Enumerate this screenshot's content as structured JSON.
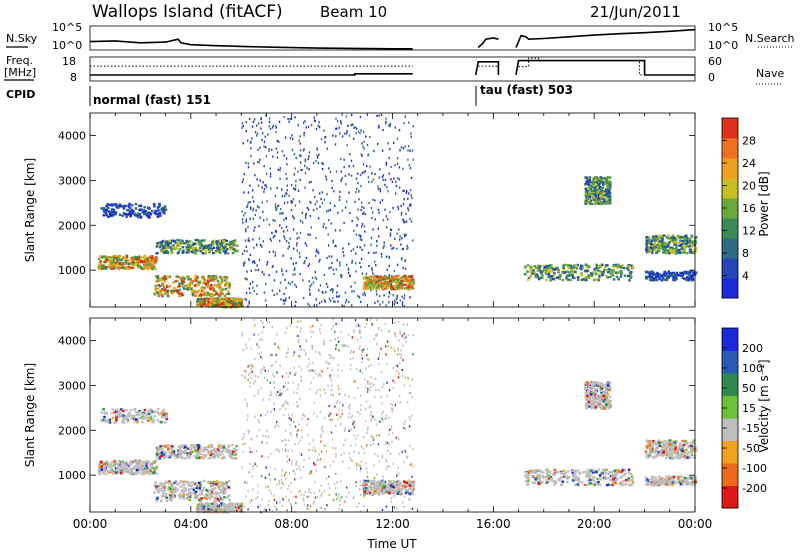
{
  "header": {
    "site": "Wallops Island (fitACF)",
    "beam": "Beam 10",
    "date": "21/Jun/2011"
  },
  "left_labels": {
    "nsky": "N.Sky",
    "freq": "Freq.",
    "freq_unit": "[MHz]",
    "cpid": "CPID"
  },
  "right_labels": {
    "nsearch": "N.Search",
    "nave": "Nave"
  },
  "cpid_labels": [
    "normal (fast) 151",
    "tau (fast) 503"
  ],
  "chart_data": [
    {
      "type": "line",
      "panel": "noise",
      "yticks_left": [
        "10^5",
        "10^0"
      ],
      "yticks_right": [
        "10^5",
        "10^0"
      ],
      "series": [
        {
          "name": "N.Sky",
          "segments": [
            {
              "x": [
                0,
                1,
                2,
                3,
                3.5,
                3.6,
                4,
                5,
                6,
                7,
                8,
                9,
                10,
                11,
                12,
                12.8
              ],
              "y": [
                0.35,
                0.38,
                0.3,
                0.33,
                0.45,
                0.3,
                0.22,
                0.18,
                0.15,
                0.12,
                0.1,
                0.08,
                0.07,
                0.06,
                0.05,
                0.05
              ]
            },
            {
              "x": [
                15.4,
                15.6,
                15.7,
                16.0,
                16.2
              ],
              "y": [
                0.1,
                0.3,
                0.45,
                0.5,
                0.45
              ]
            },
            {
              "x": [
                16.9,
                17.1,
                17.3,
                17.4,
                18,
                19,
                20,
                21,
                22,
                23,
                24
              ],
              "y": [
                0.1,
                0.6,
                0.55,
                0.45,
                0.48,
                0.55,
                0.62,
                0.68,
                0.72,
                0.78,
                0.85
              ]
            }
          ]
        }
      ]
    },
    {
      "type": "line",
      "panel": "freq_nave",
      "yticks_left": [
        "18",
        "8"
      ],
      "yticks_right": [
        "60",
        "0"
      ],
      "series": [
        {
          "name": "Freq.",
          "segments": [
            {
              "x": [
                0,
                0.1,
                10.5,
                10.5,
                12.8
              ],
              "y": [
                0.25,
                0.25,
                0.25,
                0.3,
                0.3
              ]
            },
            {
              "x": [
                15.3,
                15.4,
                16.2,
                16.2
              ],
              "y": [
                0.25,
                0.8,
                0.8,
                0.25
              ]
            },
            {
              "x": [
                16.9,
                17.0,
                22,
                22,
                24
              ],
              "y": [
                0.25,
                0.85,
                0.85,
                0.25,
                0.25
              ]
            }
          ]
        },
        {
          "name": "Nave",
          "segments": [
            {
              "x": [
                0,
                12.8
              ],
              "y": [
                0.62,
                0.62
              ]
            },
            {
              "x": [
                15.4,
                16.2
              ],
              "y": [
                0.62,
                0.62
              ]
            },
            {
              "x": [
                17.0,
                17.4,
                17.4,
                17.8,
                17.8,
                21.8,
                21.8,
                24
              ],
              "y": [
                0.6,
                0.6,
                0.95,
                0.95,
                0.85,
                0.85,
                0.25,
                0.25
              ]
            }
          ]
        }
      ]
    },
    {
      "type": "heatmap",
      "panel": "power",
      "xlabel": "",
      "ylabel": "Slant Range [km]",
      "xlim": [
        0,
        24
      ],
      "ylim": [
        180,
        4500
      ],
      "yticks": [
        1000,
        2000,
        3000,
        4000
      ],
      "colorbar": {
        "label": "Power [dB]",
        "ticks": [
          4,
          8,
          12,
          16,
          20,
          24,
          28
        ],
        "colors": [
          "#1a2ad9",
          "#2346b8",
          "#2f6a84",
          "#3a8a58",
          "#6aa83a",
          "#c8c020",
          "#f0a020",
          "#f07020",
          "#e03018"
        ]
      },
      "data_gap": [
        12.8,
        15.4
      ],
      "echo_bands": [
        {
          "t": [
            0.3,
            2.6
          ],
          "r": [
            1050,
            1350
          ],
          "level": "strong"
        },
        {
          "t": [
            2.6,
            5.8
          ],
          "r": [
            1400,
            1700
          ],
          "level": "medium"
        },
        {
          "t": [
            2.5,
            5.5
          ],
          "r": [
            450,
            900
          ],
          "level": "strong"
        },
        {
          "t": [
            4.2,
            6.0
          ],
          "r": [
            200,
            400
          ],
          "level": "strong"
        },
        {
          "t": [
            0.4,
            3.0
          ],
          "r": [
            2200,
            2500
          ],
          "level": "weak"
        },
        {
          "t": [
            6.0,
            12.8
          ],
          "r": [
            200,
            4500
          ],
          "level": "scatter"
        },
        {
          "t": [
            10.8,
            12.8
          ],
          "r": [
            600,
            900
          ],
          "level": "strong"
        },
        {
          "t": [
            17.2,
            21.5
          ],
          "r": [
            800,
            1150
          ],
          "level": "medium"
        },
        {
          "t": [
            19.6,
            20.6
          ],
          "r": [
            2500,
            3100
          ],
          "level": "medium"
        },
        {
          "t": [
            22.0,
            24.0
          ],
          "r": [
            1400,
            1800
          ],
          "level": "medium"
        },
        {
          "t": [
            22.0,
            24.0
          ],
          "r": [
            800,
            1000
          ],
          "level": "weak"
        }
      ]
    },
    {
      "type": "heatmap",
      "panel": "velocity",
      "xlabel": "Time UT",
      "ylabel": "Slant Range [km]",
      "xlim": [
        0,
        24
      ],
      "ylim": [
        180,
        4500
      ],
      "yticks": [
        1000,
        2000,
        3000,
        4000
      ],
      "xticks": [
        "00:00",
        "04:00",
        "08:00",
        "12:00",
        "16:00",
        "20:00",
        "00:00"
      ],
      "colorbar": {
        "label": "Velocity [m s⁻¹]",
        "ticks": [
          -200,
          -100,
          -50,
          -15,
          15,
          50,
          100,
          200
        ],
        "colors": [
          "#e01818",
          "#ee6a1a",
          "#f2a020",
          "#bebebe",
          "#6cc03a",
          "#2e8a48",
          "#2a5ab8",
          "#1a2ad9"
        ]
      },
      "data_gap": [
        12.8,
        15.4
      ],
      "ground_scatter_color": "#bebebe"
    }
  ]
}
